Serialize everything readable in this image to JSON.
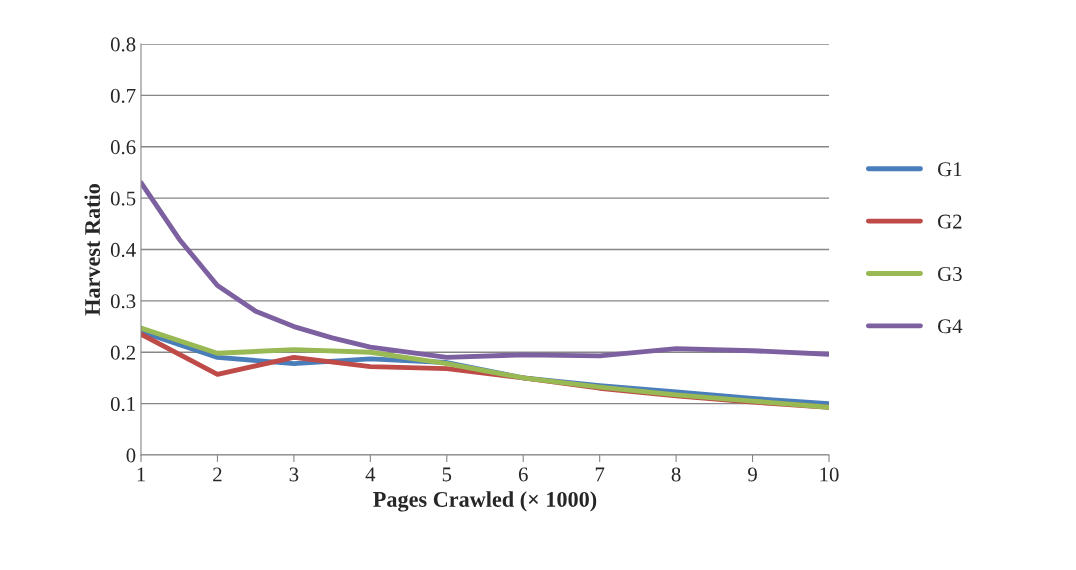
{
  "chart_data": {
    "type": "line",
    "xlabel": "Pages Crawled (× 1000)",
    "ylabel": "Harvest Ratio",
    "x": [
      1,
      2,
      3,
      4,
      5,
      6,
      7,
      8,
      9,
      10
    ],
    "xlim": [
      1,
      10
    ],
    "xticks": [
      1,
      2,
      3,
      4,
      5,
      6,
      7,
      8,
      9,
      10
    ],
    "ylim": [
      0,
      0.8
    ],
    "yticks": [
      0,
      0.1,
      0.2,
      0.3,
      0.4,
      0.5,
      0.6,
      0.7,
      0.8
    ],
    "grid": "y",
    "legend": "right",
    "marker": "none",
    "line_style": "solid",
    "series": [
      {
        "name": "G1",
        "color": "#4a7ebb",
        "values": [
          0.24,
          0.19,
          0.178,
          0.187,
          0.18,
          0.15,
          0.135,
          0.123,
          0.11,
          0.1
        ]
      },
      {
        "name": "G2",
        "color": "#be4b48",
        "values": [
          0.235,
          0.157,
          0.19,
          0.172,
          0.168,
          0.15,
          0.13,
          0.115,
          0.103,
          0.093
        ]
      },
      {
        "name": "G3",
        "color": "#98b954",
        "values": [
          0.247,
          0.198,
          0.205,
          0.2,
          0.178,
          0.15,
          0.132,
          0.117,
          0.105,
          0.093
        ]
      },
      {
        "name": "G4",
        "color": "#7d60a0",
        "x": [
          1,
          1.5,
          2,
          2.5,
          3,
          3.5,
          4,
          5,
          6,
          7,
          8,
          9,
          10
        ],
        "values": [
          0.53,
          0.42,
          0.33,
          0.28,
          0.25,
          0.228,
          0.21,
          0.19,
          0.195,
          0.193,
          0.207,
          0.203,
          0.196
        ]
      }
    ]
  }
}
